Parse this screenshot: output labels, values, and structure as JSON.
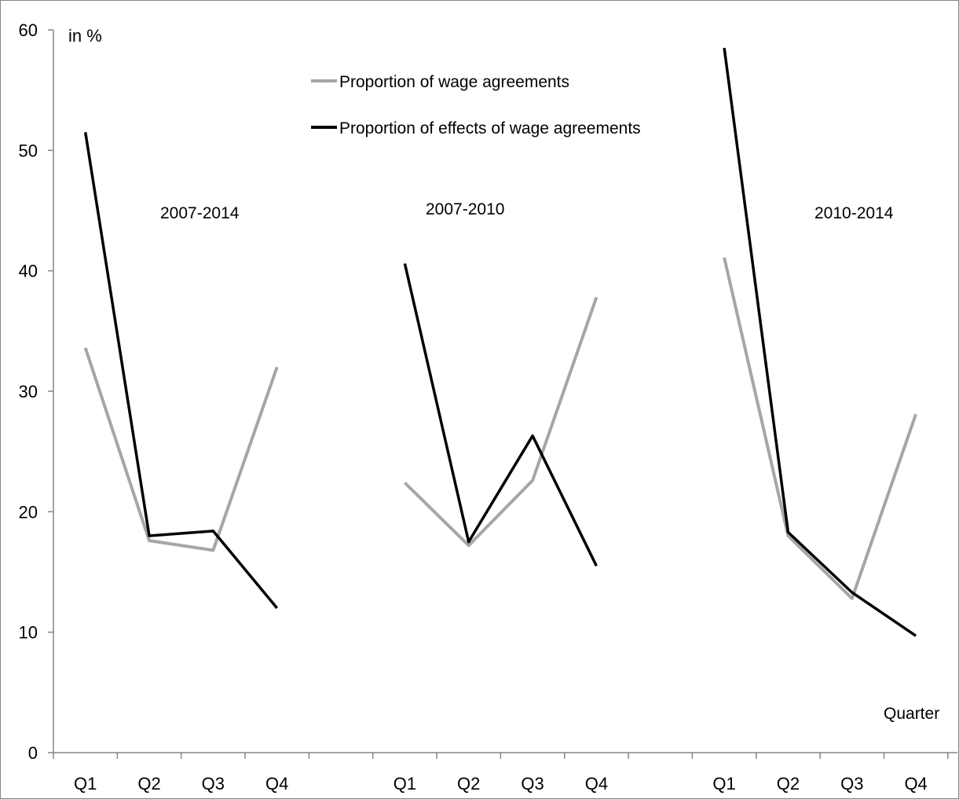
{
  "chart_data": {
    "type": "line",
    "title": "",
    "xlabel": "Quarter",
    "ylabel": "in %",
    "ylim": [
      0,
      60
    ],
    "yticks": [
      0,
      10,
      20,
      30,
      40,
      50,
      60
    ],
    "grid": false,
    "legend_position": "top-center",
    "categories": [
      "Q1",
      "Q2",
      "Q3",
      "Q4",
      "",
      "Q1",
      "Q2",
      "Q3",
      "Q4",
      "",
      "Q1",
      "Q2",
      "Q3",
      "Q4"
    ],
    "groups": [
      {
        "label": "2007-2014",
        "categories": [
          "Q1",
          "Q2",
          "Q3",
          "Q4"
        ]
      },
      {
        "label": "2007-2010",
        "categories": [
          "Q1",
          "Q2",
          "Q3",
          "Q4"
        ]
      },
      {
        "label": "2010-2014",
        "categories": [
          "Q1",
          "Q2",
          "Q3",
          "Q4"
        ]
      }
    ],
    "series": [
      {
        "name": "Proportion of wage agreements",
        "color": "#a6a6a6",
        "values": [
          33.6,
          17.6,
          16.8,
          32.0,
          null,
          22.4,
          17.2,
          22.6,
          37.8,
          null,
          41.1,
          18.0,
          12.8,
          28.1
        ]
      },
      {
        "name": "Proportion of effects of wage agreements",
        "color": "#000000",
        "values": [
          51.5,
          18.0,
          18.4,
          12.0,
          null,
          40.6,
          17.5,
          26.3,
          15.5,
          null,
          58.5,
          18.3,
          13.3,
          9.7
        ]
      }
    ]
  }
}
